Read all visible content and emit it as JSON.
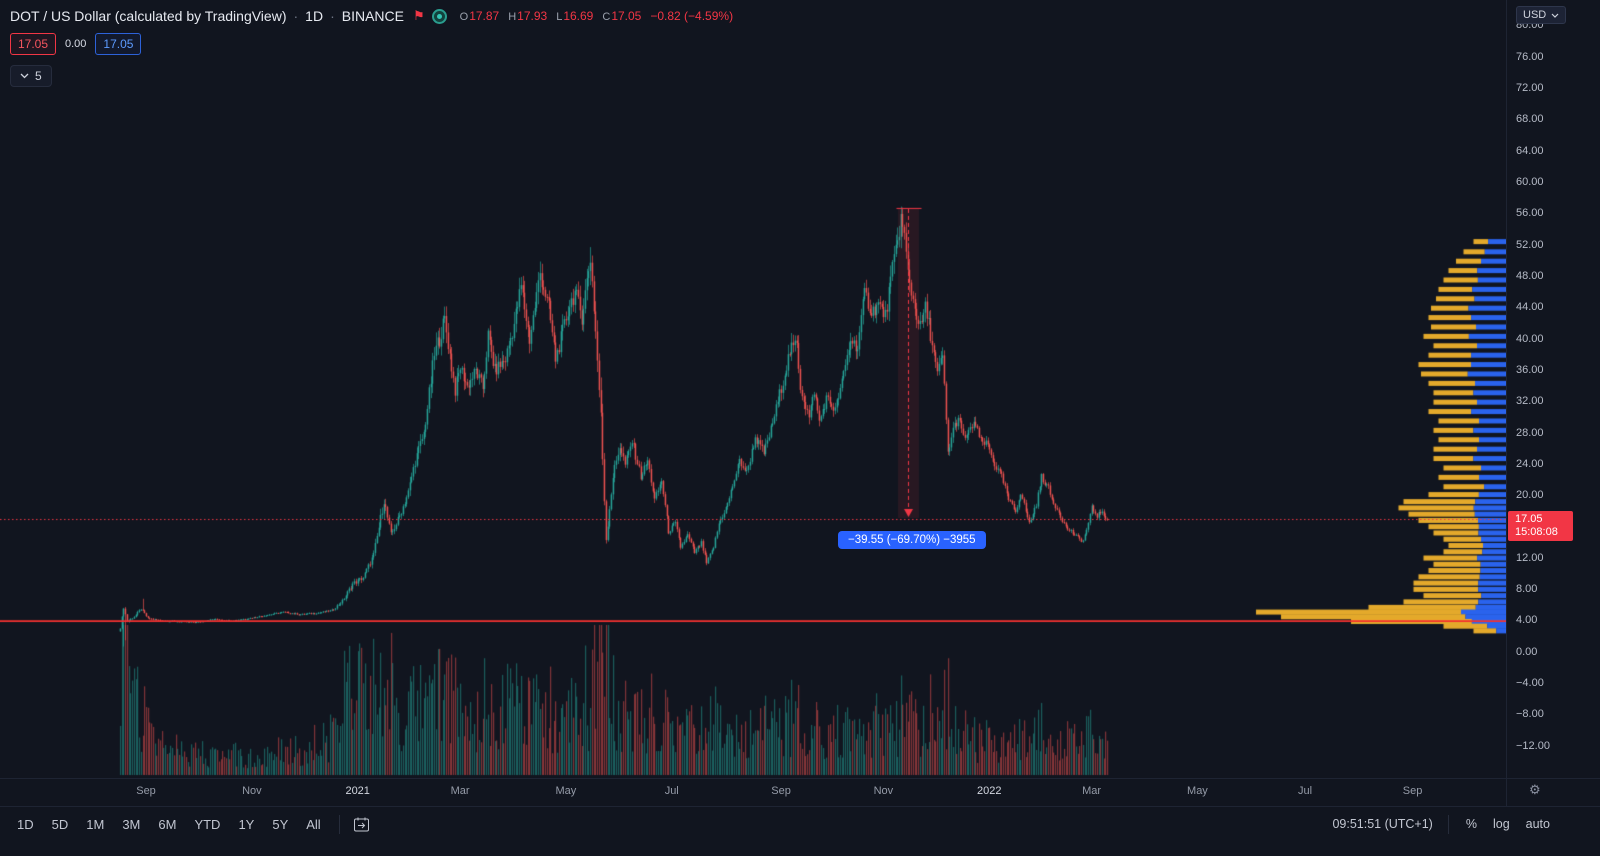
{
  "icons": {
    "flag": "⚑",
    "gear": "⚙"
  },
  "header": {
    "symbol_title": "DOT / US Dollar (calculated by TradingView)",
    "sep": "·",
    "interval": "1D",
    "exchange": "BINANCE",
    "ohlc": {
      "o_label": "O",
      "o": "17.87",
      "h_label": "H",
      "h": "17.93",
      "l_label": "L",
      "l": "16.69",
      "c_label": "C",
      "c": "17.05",
      "change": "−0.82 (−4.59%)"
    },
    "sell": "17.05",
    "spread": "0.00",
    "buy": "17.05",
    "collapsed_count": "5"
  },
  "price_axis": {
    "currency_button": "USD",
    "ticks": [
      80,
      76,
      72,
      68,
      64,
      60,
      56,
      52,
      48,
      44,
      40,
      36,
      32,
      28,
      24,
      20,
      12,
      8,
      4,
      0,
      -4,
      -8,
      -12
    ],
    "last_price": "17.05",
    "countdown": "15:08:08"
  },
  "time_axis": {
    "labels": [
      {
        "text": "Sep",
        "day": 15
      },
      {
        "text": "Nov",
        "day": 76
      },
      {
        "text": "2021",
        "day": 137,
        "strong": true
      },
      {
        "text": "Mar",
        "day": 196
      },
      {
        "text": "May",
        "day": 257
      },
      {
        "text": "Jul",
        "day": 318
      },
      {
        "text": "Sep",
        "day": 381
      },
      {
        "text": "Nov",
        "day": 440
      },
      {
        "text": "2022",
        "day": 501,
        "strong": true
      },
      {
        "text": "Mar",
        "day": 560
      },
      {
        "text": "May",
        "day": 621
      },
      {
        "text": "Jul",
        "day": 683
      },
      {
        "text": "Sep",
        "day": 745
      }
    ]
  },
  "toolbar": {
    "ranges": [
      "1D",
      "5D",
      "1M",
      "3M",
      "6M",
      "YTD",
      "1Y",
      "5Y",
      "All"
    ],
    "clock": "09:51:51 (UTC+1)",
    "percent": "%",
    "log": "log",
    "auto": "auto"
  },
  "chart_data": {
    "type": "candlestick",
    "symbol": "DOT/USD",
    "title": "DOT / US Dollar (calculated by TradingView)",
    "interval": "1D",
    "exchange": "BINANCE",
    "last": {
      "open": 17.87,
      "high": 17.93,
      "low": 16.69,
      "close": 17.05,
      "change": -0.82,
      "change_pct": -4.59
    },
    "y_axis": {
      "unit": "USD",
      "visible_ticks": [
        80,
        76,
        72,
        68,
        64,
        60,
        56,
        52,
        48,
        44,
        40,
        36,
        32,
        28,
        24,
        20,
        12,
        8,
        4,
        0,
        -4,
        -8,
        -12
      ]
    },
    "days_total": 569,
    "price_line": 17.05,
    "support_line": 4.05,
    "close_anchors": [
      [
        0,
        3.2
      ],
      [
        2,
        5.8
      ],
      [
        4,
        4.0
      ],
      [
        8,
        4.6
      ],
      [
        12,
        5.6
      ],
      [
        16,
        4.4
      ],
      [
        24,
        4.1
      ],
      [
        34,
        4.0
      ],
      [
        44,
        3.9
      ],
      [
        54,
        4.3
      ],
      [
        64,
        4.1
      ],
      [
        74,
        4.4
      ],
      [
        84,
        4.8
      ],
      [
        94,
        5.2
      ],
      [
        104,
        4.9
      ],
      [
        114,
        5.1
      ],
      [
        122,
        5.4
      ],
      [
        128,
        6.6
      ],
      [
        134,
        8.8
      ],
      [
        140,
        9.6
      ],
      [
        146,
        12.5
      ],
      [
        152,
        19.5
      ],
      [
        156,
        15.0
      ],
      [
        161,
        17.5
      ],
      [
        166,
        20.5
      ],
      [
        170,
        24.5
      ],
      [
        175,
        28.0
      ],
      [
        181,
        38.0
      ],
      [
        187,
        42.5
      ],
      [
        193,
        33.5
      ],
      [
        196,
        36.5
      ],
      [
        200,
        34.0
      ],
      [
        205,
        36.0
      ],
      [
        209,
        33.8
      ],
      [
        212,
        40.5
      ],
      [
        216,
        36.0
      ],
      [
        222,
        37.5
      ],
      [
        227,
        42.0
      ],
      [
        231,
        46.8
      ],
      [
        236,
        40.0
      ],
      [
        242,
        48.5
      ],
      [
        247,
        44.0
      ],
      [
        251,
        37.5
      ],
      [
        255,
        41.0
      ],
      [
        259,
        44.5
      ],
      [
        262,
        46.0
      ],
      [
        266,
        43.0
      ],
      [
        271,
        50.5
      ],
      [
        274,
        41.0
      ],
      [
        277,
        30.0
      ],
      [
        280,
        14.5
      ],
      [
        284,
        22.5
      ],
      [
        288,
        26.5
      ],
      [
        291,
        24.0
      ],
      [
        295,
        27.0
      ],
      [
        300,
        22.5
      ],
      [
        304,
        24.5
      ],
      [
        308,
        19.5
      ],
      [
        312,
        22.0
      ],
      [
        316,
        15.5
      ],
      [
        320,
        16.5
      ],
      [
        323,
        13.5
      ],
      [
        327,
        15.0
      ],
      [
        331,
        12.8
      ],
      [
        335,
        14.0
      ],
      [
        338,
        11.4
      ],
      [
        342,
        13.5
      ],
      [
        345,
        16.5
      ],
      [
        350,
        19.0
      ],
      [
        357,
        24.5
      ],
      [
        361,
        23.0
      ],
      [
        366,
        27.5
      ],
      [
        371,
        25.5
      ],
      [
        375,
        28.5
      ],
      [
        380,
        33.0
      ],
      [
        386,
        38.5
      ],
      [
        390,
        39.5
      ],
      [
        392,
        34.0
      ],
      [
        397,
        30.0
      ],
      [
        400,
        33.5
      ],
      [
        403,
        29.5
      ],
      [
        407,
        32.5
      ],
      [
        412,
        31.0
      ],
      [
        416,
        34.5
      ],
      [
        421,
        40.0
      ],
      [
        425,
        39.0
      ],
      [
        429,
        46.0
      ],
      [
        433,
        43.5
      ],
      [
        437,
        44.5
      ],
      [
        441,
        43.0
      ],
      [
        444,
        47.5
      ],
      [
        447,
        51.5
      ],
      [
        450,
        55.5
      ],
      [
        452,
        53.0
      ],
      [
        454,
        48.5
      ],
      [
        457,
        45.0
      ],
      [
        461,
        41.5
      ],
      [
        464,
        44.0
      ],
      [
        466,
        42.0
      ],
      [
        471,
        35.5
      ],
      [
        474,
        38.0
      ],
      [
        477,
        25.5
      ],
      [
        480,
        28.5
      ],
      [
        483,
        30.0
      ],
      [
        486,
        27.5
      ],
      [
        489,
        28.0
      ],
      [
        492,
        29.5
      ],
      [
        496,
        27.0
      ],
      [
        500,
        26.5
      ],
      [
        504,
        24.0
      ],
      [
        508,
        22.5
      ],
      [
        512,
        19.5
      ],
      [
        516,
        18.0
      ],
      [
        519,
        20.5
      ],
      [
        524,
        16.5
      ],
      [
        528,
        19.0
      ],
      [
        531,
        22.5
      ],
      [
        535,
        21.0
      ],
      [
        537,
        19.5
      ],
      [
        541,
        18.0
      ],
      [
        545,
        16.0
      ],
      [
        548,
        15.5
      ],
      [
        551,
        14.8
      ],
      [
        555,
        14.3
      ],
      [
        558,
        16.5
      ],
      [
        560,
        18.5
      ],
      [
        563,
        17.5
      ],
      [
        565,
        18.0
      ],
      [
        567,
        17.5
      ],
      [
        569,
        17.05
      ]
    ],
    "activity_anchors": [
      [
        0,
        0.9
      ],
      [
        6,
        0.7
      ],
      [
        12,
        0.5
      ],
      [
        20,
        0.3
      ],
      [
        40,
        0.22
      ],
      [
        70,
        0.2
      ],
      [
        100,
        0.25
      ],
      [
        120,
        0.35
      ],
      [
        130,
        0.8
      ],
      [
        136,
        1.0
      ],
      [
        140,
        0.7
      ],
      [
        152,
        0.9
      ],
      [
        160,
        0.6
      ],
      [
        170,
        0.65
      ],
      [
        182,
        0.8
      ],
      [
        190,
        0.6
      ],
      [
        200,
        0.55
      ],
      [
        215,
        0.6
      ],
      [
        231,
        0.65
      ],
      [
        242,
        0.6
      ],
      [
        255,
        0.55
      ],
      [
        271,
        0.7
      ],
      [
        277,
        1.0
      ],
      [
        282,
        0.8
      ],
      [
        290,
        0.6
      ],
      [
        300,
        0.5
      ],
      [
        315,
        0.45
      ],
      [
        330,
        0.4
      ],
      [
        340,
        0.45
      ],
      [
        350,
        0.4
      ],
      [
        365,
        0.45
      ],
      [
        380,
        0.5
      ],
      [
        390,
        0.55
      ],
      [
        400,
        0.45
      ],
      [
        415,
        0.4
      ],
      [
        430,
        0.45
      ],
      [
        445,
        0.5
      ],
      [
        452,
        0.55
      ],
      [
        465,
        0.5
      ],
      [
        480,
        0.45
      ],
      [
        495,
        0.35
      ],
      [
        510,
        0.3
      ],
      [
        525,
        0.35
      ],
      [
        540,
        0.3
      ],
      [
        555,
        0.35
      ],
      [
        569,
        0.25
      ]
    ],
    "high_overrides": [
      [
        13,
        6.9
      ],
      [
        271,
        51.8
      ],
      [
        450,
        56.8
      ]
    ],
    "low_overrides": [
      [
        2,
        0.8
      ],
      [
        3,
        1.6
      ]
    ],
    "measure_tool": {
      "day": 454,
      "price_top": 56.8,
      "price_bottom": 17.2,
      "label": "−39.55 (−69.70%) −3955"
    },
    "volume_profile": {
      "rows": [
        [
          52.5,
          0.13,
          0.55
        ],
        [
          51.2,
          0.17,
          0.5
        ],
        [
          50,
          0.2,
          0.5
        ],
        [
          48.8,
          0.23,
          0.5
        ],
        [
          47.6,
          0.25,
          0.45
        ],
        [
          46.4,
          0.27,
          0.5
        ],
        [
          45.2,
          0.28,
          0.45
        ],
        [
          44,
          0.3,
          0.5
        ],
        [
          42.8,
          0.31,
          0.45
        ],
        [
          41.6,
          0.3,
          0.4
        ],
        [
          40.4,
          0.33,
          0.45
        ],
        [
          39.2,
          0.29,
          0.4
        ],
        [
          38,
          0.31,
          0.45
        ],
        [
          36.8,
          0.35,
          0.4
        ],
        [
          35.6,
          0.34,
          0.45
        ],
        [
          34.4,
          0.31,
          0.4
        ],
        [
          33.2,
          0.29,
          0.45
        ],
        [
          32,
          0.29,
          0.4
        ],
        [
          30.8,
          0.31,
          0.45
        ],
        [
          29.6,
          0.27,
          0.4
        ],
        [
          28.4,
          0.29,
          0.45
        ],
        [
          27.2,
          0.27,
          0.4
        ],
        [
          26,
          0.29,
          0.4
        ],
        [
          24.8,
          0.29,
          0.45
        ],
        [
          23.6,
          0.25,
          0.4
        ],
        [
          22.4,
          0.27,
          0.4
        ],
        [
          21.2,
          0.25,
          0.35
        ],
        [
          20.2,
          0.31,
          0.35
        ],
        [
          19.3,
          0.41,
          0.3
        ],
        [
          18.5,
          0.43,
          0.3
        ],
        [
          17.7,
          0.39,
          0.32
        ],
        [
          16.9,
          0.35,
          0.32
        ],
        [
          16.1,
          0.31,
          0.35
        ],
        [
          15.3,
          0.29,
          0.38
        ],
        [
          14.5,
          0.25,
          0.4
        ],
        [
          13.7,
          0.23,
          0.4
        ],
        [
          12.9,
          0.25,
          0.38
        ],
        [
          12.1,
          0.33,
          0.35
        ],
        [
          11.3,
          0.29,
          0.35
        ],
        [
          10.5,
          0.31,
          0.33
        ],
        [
          9.7,
          0.35,
          0.3
        ],
        [
          8.9,
          0.37,
          0.3
        ],
        [
          8.1,
          0.37,
          0.3
        ],
        [
          7.3,
          0.33,
          0.3
        ],
        [
          6.5,
          0.41,
          0.27
        ],
        [
          5.8,
          0.55,
          0.22
        ],
        [
          5.2,
          1.0,
          0.18
        ],
        [
          4.6,
          0.9,
          0.18
        ],
        [
          4.0,
          0.62,
          0.22
        ],
        [
          3.4,
          0.25,
          0.3
        ],
        [
          2.8,
          0.13,
          0.3
        ]
      ]
    },
    "colors": {
      "up": "#26a69a",
      "down": "#ef5350",
      "support_line": "#f53030",
      "price_line": "#f23645",
      "profile_yellow": "#f6b62c",
      "profile_blue": "#2c6aff",
      "measure": "#f23645",
      "tooltip_bg": "#2962ff"
    }
  }
}
